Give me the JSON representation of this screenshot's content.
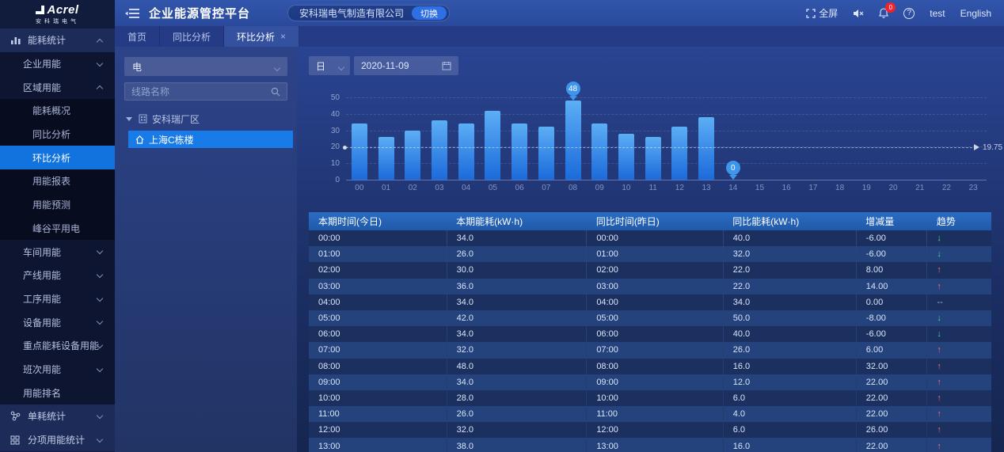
{
  "logo": {
    "brand": "Acrel",
    "sub": "安科瑞电气"
  },
  "header": {
    "title": "企业能源管控平台",
    "company": "安科瑞电气制造有限公司",
    "switch_label": "切换",
    "fullscreen_label": "全屏",
    "notification_count": "0",
    "user": "test",
    "language": "English"
  },
  "tabs": [
    {
      "name": "home",
      "label": "首页",
      "active": false,
      "closable": false
    },
    {
      "name": "yoy-analysis",
      "label": "同比分析",
      "active": false,
      "closable": false
    },
    {
      "name": "mom-analysis",
      "label": "环比分析",
      "active": true,
      "closable": true
    }
  ],
  "sidebar": {
    "items": [
      {
        "name": "energy-stats",
        "level": 1,
        "label": "能耗统计",
        "icon": "bar-chart",
        "caret": "up",
        "active": false
      },
      {
        "name": "enterprise-energy",
        "level": 2,
        "label": "企业用能",
        "caret": "down",
        "active": false
      },
      {
        "name": "region-energy",
        "level": 2,
        "label": "区域用能",
        "caret": "up",
        "active": false
      },
      {
        "name": "energy-overview",
        "level": 3,
        "label": "能耗概况",
        "active": false
      },
      {
        "name": "yoy-analysis",
        "level": 3,
        "label": "同比分析",
        "active": false
      },
      {
        "name": "mom-analysis",
        "level": 3,
        "label": "环比分析",
        "active": true
      },
      {
        "name": "energy-report",
        "level": 3,
        "label": "用能报表",
        "active": false
      },
      {
        "name": "energy-forecast",
        "level": 3,
        "label": "用能预测",
        "active": false
      },
      {
        "name": "peak-valley-power",
        "level": 3,
        "label": "峰谷平用电",
        "active": false
      },
      {
        "name": "workshop-energy",
        "level": 2,
        "label": "车间用能",
        "caret": "down",
        "active": false
      },
      {
        "name": "line-energy",
        "level": 2,
        "label": "产线用能",
        "caret": "down",
        "active": false
      },
      {
        "name": "process-energy",
        "level": 2,
        "label": "工序用能",
        "caret": "down",
        "active": false
      },
      {
        "name": "equipment-energy",
        "level": 2,
        "label": "设备用能",
        "caret": "down",
        "active": false
      },
      {
        "name": "key-equipment-energy",
        "level": 2,
        "label": "重点能耗设备用能",
        "caret": "down",
        "active": false
      },
      {
        "name": "shift-energy",
        "level": 2,
        "label": "班次用能",
        "caret": "down",
        "active": false
      },
      {
        "name": "energy-ranking",
        "level": 2,
        "label": "用能排名",
        "active": false
      },
      {
        "name": "unit-consumption-stats",
        "level": 1,
        "label": "单耗统计",
        "icon": "unit",
        "caret": "down",
        "active": false
      },
      {
        "name": "subitem-energy-stats",
        "level": 1,
        "label": "分项用能统计",
        "icon": "grid",
        "caret": "down",
        "active": false
      }
    ]
  },
  "panel": {
    "energy_type": "电",
    "search_placeholder": "线路名称",
    "tree": {
      "root": "安科瑞厂区",
      "child": "上海C栋楼"
    }
  },
  "toolbar": {
    "period": "日",
    "date": "2020-11-09"
  },
  "chart_data": {
    "type": "bar",
    "x": [
      "00",
      "01",
      "02",
      "03",
      "04",
      "05",
      "06",
      "07",
      "08",
      "09",
      "10",
      "11",
      "12",
      "13",
      "14",
      "15",
      "16",
      "17",
      "18",
      "19",
      "20",
      "21",
      "22",
      "23"
    ],
    "values": [
      34,
      26,
      30,
      36,
      34,
      42,
      34,
      32,
      48,
      34,
      28,
      26,
      32,
      38,
      0,
      0,
      0,
      0,
      0,
      0,
      0,
      0,
      0,
      0
    ],
    "ylim": [
      0,
      50
    ],
    "yticks": [
      0,
      10,
      20,
      30,
      40,
      50
    ],
    "grid": true,
    "average_line": 19.75,
    "average_label": "19.75",
    "markers": [
      {
        "x_index": 8,
        "label": "48"
      },
      {
        "x_index": 14,
        "label": "0"
      }
    ],
    "bar_color_top": "#5caef5",
    "bar_color_bottom": "#1b6adb"
  },
  "table": {
    "columns": [
      "本期时间(今日)",
      "本期能耗(kW·h)",
      "同比时间(昨日)",
      "同比能耗(kW·h)",
      "增减量",
      "趋势"
    ],
    "rows": [
      [
        "00:00",
        "34.0",
        "00:00",
        "40.0",
        "-6.00",
        "down"
      ],
      [
        "01:00",
        "26.0",
        "01:00",
        "32.0",
        "-6.00",
        "down"
      ],
      [
        "02:00",
        "30.0",
        "02:00",
        "22.0",
        "8.00",
        "up"
      ],
      [
        "03:00",
        "36.0",
        "03:00",
        "22.0",
        "14.00",
        "up"
      ],
      [
        "04:00",
        "34.0",
        "04:00",
        "34.0",
        "0.00",
        "flat"
      ],
      [
        "05:00",
        "42.0",
        "05:00",
        "50.0",
        "-8.00",
        "down"
      ],
      [
        "06:00",
        "34.0",
        "06:00",
        "40.0",
        "-6.00",
        "down"
      ],
      [
        "07:00",
        "32.0",
        "07:00",
        "26.0",
        "6.00",
        "up"
      ],
      [
        "08:00",
        "48.0",
        "08:00",
        "16.0",
        "32.00",
        "up"
      ],
      [
        "09:00",
        "34.0",
        "09:00",
        "12.0",
        "22.00",
        "up"
      ],
      [
        "10:00",
        "28.0",
        "10:00",
        "6.0",
        "22.00",
        "up"
      ],
      [
        "11:00",
        "26.0",
        "11:00",
        "4.0",
        "22.00",
        "up"
      ],
      [
        "12:00",
        "32.0",
        "12:00",
        "6.0",
        "26.00",
        "up"
      ],
      [
        "13:00",
        "38.0",
        "13:00",
        "16.0",
        "22.00",
        "up"
      ]
    ]
  },
  "glyphs": {
    "close": "×",
    "help": "?",
    "trend_up": "↑",
    "trend_down": "↓",
    "trend_flat": "--"
  },
  "colors": {
    "accent_blue": "#1273de",
    "header_blue": "#2d4fa3",
    "table_header": "#2465b5",
    "trend_up": "#ec7080",
    "trend_down": "#4fd0a0",
    "badge_red": "#f5222d",
    "selected_tree": "#187be8"
  }
}
